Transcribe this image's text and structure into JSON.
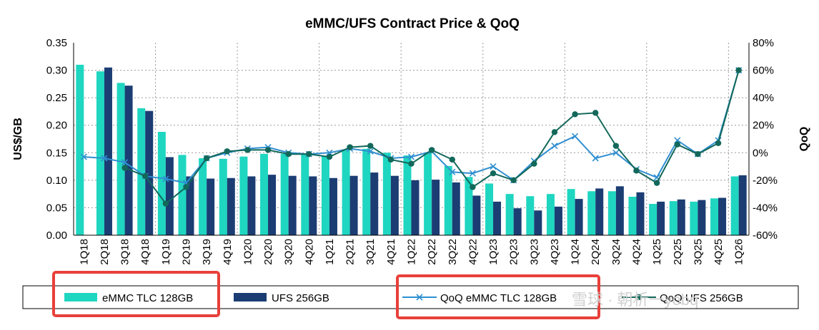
{
  "chart_data": {
    "type": "bar",
    "title": "eMMC/UFS Contract Price & QoQ",
    "xlabel": "",
    "ylabel": "US$/GB",
    "y2label": "QoQ",
    "ylim": [
      0,
      0.35
    ],
    "yticks": [
      "0.00",
      "0.05",
      "0.10",
      "0.15",
      "0.20",
      "0.25",
      "0.30",
      "0.35"
    ],
    "y2lim": [
      -60,
      80
    ],
    "y2ticks": [
      "-60%",
      "-40%",
      "-20%",
      "0%",
      "20%",
      "40%",
      "60%",
      "80%"
    ],
    "grid": "horizontal-and-vertical-dotted",
    "legend_position": "bottom",
    "categories": [
      "1Q18",
      "2Q18",
      "3Q18",
      "4Q18",
      "1Q19",
      "2Q19",
      "3Q19",
      "4Q19",
      "1Q20",
      "2Q20",
      "3Q20",
      "4Q20",
      "1Q21",
      "2Q21",
      "3Q21",
      "4Q21",
      "1Q22",
      "2Q22",
      "3Q22",
      "4Q22",
      "1Q23",
      "2Q23",
      "3Q23",
      "4Q23",
      "1Q24",
      "2Q24",
      "3Q24",
      "4Q24",
      "1Q25",
      "2Q25",
      "3Q25",
      "4Q25",
      "1Q26"
    ],
    "series": [
      {
        "name": "eMMC TLC 128GB",
        "type": "bar",
        "axis": "left",
        "color": "#1fd6c1",
        "values": [
          0.31,
          0.298,
          0.277,
          0.231,
          0.188,
          0.146,
          0.14,
          0.139,
          0.143,
          0.148,
          0.148,
          0.147,
          0.144,
          0.155,
          0.157,
          0.15,
          0.145,
          0.15,
          0.126,
          0.106,
          0.094,
          0.075,
          0.071,
          0.075,
          0.084,
          0.08,
          0.08,
          0.07,
          0.057,
          0.062,
          0.061,
          0.067,
          0.107
        ]
      },
      {
        "name": "UFS 256GB",
        "type": "bar",
        "axis": "left",
        "color": "#1b3d73",
        "values": [
          null,
          0.305,
          0.272,
          0.226,
          0.142,
          0.107,
          0.103,
          0.104,
          0.107,
          0.11,
          0.108,
          0.107,
          0.104,
          0.108,
          0.114,
          0.108,
          0.1,
          0.101,
          0.096,
          0.072,
          0.061,
          0.049,
          0.045,
          0.052,
          0.066,
          0.085,
          0.089,
          0.078,
          0.061,
          0.065,
          0.064,
          0.068,
          0.109
        ]
      },
      {
        "name": "QoQ eMMC TLC 128GB",
        "type": "line",
        "axis": "right",
        "marker": "x",
        "color": "#2f8fd1",
        "values": [
          -3,
          -4,
          -7,
          -17,
          -19,
          -22,
          -4,
          0,
          3,
          4,
          0,
          -1,
          0,
          3,
          1,
          -4,
          -3,
          1,
          -14,
          -15,
          -10,
          -20,
          -6,
          5,
          12,
          -4,
          0,
          -12,
          -18,
          9,
          -1,
          9,
          60
        ]
      },
      {
        "name": "QoQ UFS 256GB",
        "type": "line",
        "axis": "right",
        "marker": "circle",
        "color": "#12685a",
        "values": [
          null,
          null,
          -11,
          -17,
          -37,
          -25,
          -4,
          1,
          2,
          2,
          -1,
          -1,
          -3,
          4,
          5,
          -5,
          -8,
          2,
          -5,
          -25,
          -15,
          -20,
          -8,
          15,
          28,
          29,
          5,
          -13,
          -22,
          6,
          -1,
          7,
          60
        ]
      }
    ]
  },
  "watermark": "雪球 · 朝析一yobq"
}
